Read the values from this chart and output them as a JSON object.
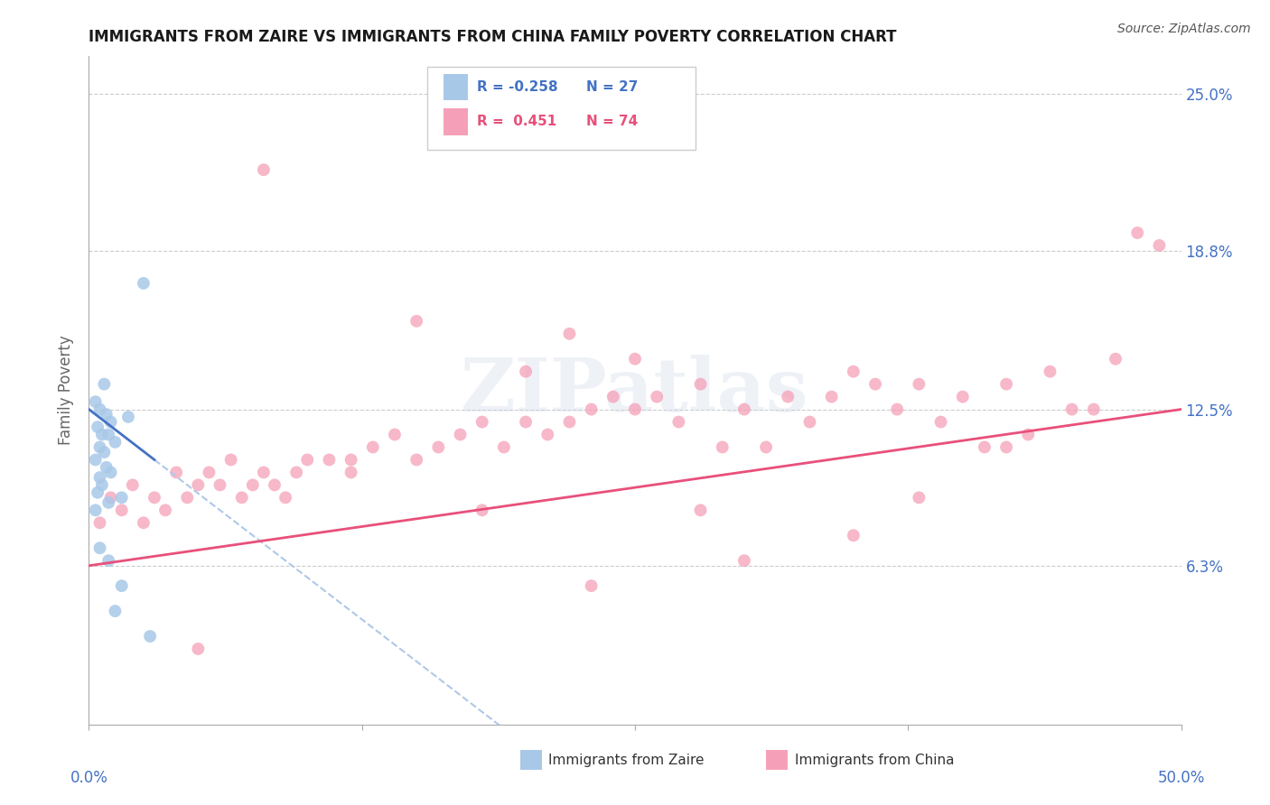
{
  "title": "IMMIGRANTS FROM ZAIRE VS IMMIGRANTS FROM CHINA FAMILY POVERTY CORRELATION CHART",
  "source": "Source: ZipAtlas.com",
  "ylabel": "Family Poverty",
  "ytick_vals": [
    6.3,
    12.5,
    18.8,
    25.0
  ],
  "ytick_labels": [
    "6.3%",
    "12.5%",
    "18.8%",
    "25.0%"
  ],
  "xlim": [
    0.0,
    50.0
  ],
  "ylim": [
    0.0,
    26.5
  ],
  "zaire_color": "#a8c8e8",
  "china_color": "#f5a0b8",
  "zaire_line_color": "#4472c4",
  "china_line_color": "#e8507a",
  "zaire_dash_color": "#b0c8e8",
  "axis_label_color": "#4472c4",
  "title_color": "#1a1a1a",
  "source_color": "#555555",
  "watermark": "ZIPatlas",
  "zaire_points": [
    [
      0.3,
      12.8
    ],
    [
      0.5,
      12.5
    ],
    [
      0.8,
      12.3
    ],
    [
      1.0,
      12.0
    ],
    [
      0.4,
      11.8
    ],
    [
      0.6,
      11.5
    ],
    [
      0.9,
      11.5
    ],
    [
      1.2,
      11.2
    ],
    [
      0.5,
      11.0
    ],
    [
      0.7,
      10.8
    ],
    [
      0.3,
      10.5
    ],
    [
      0.8,
      10.2
    ],
    [
      1.0,
      10.0
    ],
    [
      0.5,
      9.8
    ],
    [
      0.6,
      9.5
    ],
    [
      0.4,
      9.2
    ],
    [
      1.5,
      9.0
    ],
    [
      0.9,
      8.8
    ],
    [
      1.8,
      12.2
    ],
    [
      2.5,
      17.5
    ],
    [
      0.7,
      13.5
    ],
    [
      1.5,
      5.5
    ],
    [
      2.8,
      3.5
    ],
    [
      0.9,
      6.5
    ],
    [
      0.5,
      7.0
    ],
    [
      1.2,
      4.5
    ],
    [
      0.3,
      8.5
    ]
  ],
  "china_points": [
    [
      0.5,
      8.0
    ],
    [
      1.0,
      9.0
    ],
    [
      1.5,
      8.5
    ],
    [
      2.0,
      9.5
    ],
    [
      2.5,
      8.0
    ],
    [
      3.0,
      9.0
    ],
    [
      3.5,
      8.5
    ],
    [
      4.0,
      10.0
    ],
    [
      4.5,
      9.0
    ],
    [
      5.0,
      9.5
    ],
    [
      5.5,
      10.0
    ],
    [
      6.0,
      9.5
    ],
    [
      6.5,
      10.5
    ],
    [
      7.0,
      9.0
    ],
    [
      7.5,
      9.5
    ],
    [
      8.0,
      10.0
    ],
    [
      8.5,
      9.5
    ],
    [
      9.0,
      9.0
    ],
    [
      9.5,
      10.0
    ],
    [
      10.0,
      10.5
    ],
    [
      11.0,
      10.5
    ],
    [
      12.0,
      10.0
    ],
    [
      13.0,
      11.0
    ],
    [
      14.0,
      11.5
    ],
    [
      15.0,
      10.5
    ],
    [
      16.0,
      11.0
    ],
    [
      17.0,
      11.5
    ],
    [
      18.0,
      12.0
    ],
    [
      19.0,
      11.0
    ],
    [
      20.0,
      12.0
    ],
    [
      21.0,
      11.5
    ],
    [
      22.0,
      12.0
    ],
    [
      23.0,
      12.5
    ],
    [
      24.0,
      13.0
    ],
    [
      25.0,
      12.5
    ],
    [
      26.0,
      13.0
    ],
    [
      27.0,
      12.0
    ],
    [
      28.0,
      13.5
    ],
    [
      29.0,
      11.0
    ],
    [
      30.0,
      12.5
    ],
    [
      31.0,
      11.0
    ],
    [
      32.0,
      13.0
    ],
    [
      33.0,
      12.0
    ],
    [
      34.0,
      13.0
    ],
    [
      35.0,
      14.0
    ],
    [
      36.0,
      13.5
    ],
    [
      37.0,
      12.5
    ],
    [
      38.0,
      13.5
    ],
    [
      39.0,
      12.0
    ],
    [
      40.0,
      13.0
    ],
    [
      41.0,
      11.0
    ],
    [
      42.0,
      13.5
    ],
    [
      43.0,
      11.5
    ],
    [
      44.0,
      14.0
    ],
    [
      45.0,
      12.5
    ],
    [
      46.0,
      12.5
    ],
    [
      47.0,
      14.5
    ],
    [
      48.0,
      19.5
    ],
    [
      49.0,
      19.0
    ],
    [
      8.0,
      22.0
    ],
    [
      15.0,
      16.0
    ],
    [
      20.0,
      14.0
    ],
    [
      25.0,
      14.5
    ],
    [
      12.0,
      10.5
    ],
    [
      18.0,
      8.5
    ],
    [
      28.0,
      8.5
    ],
    [
      35.0,
      7.5
    ],
    [
      30.0,
      6.5
    ],
    [
      38.0,
      9.0
    ],
    [
      22.0,
      15.5
    ],
    [
      42.0,
      11.0
    ],
    [
      5.0,
      3.0
    ],
    [
      23.0,
      5.5
    ]
  ]
}
